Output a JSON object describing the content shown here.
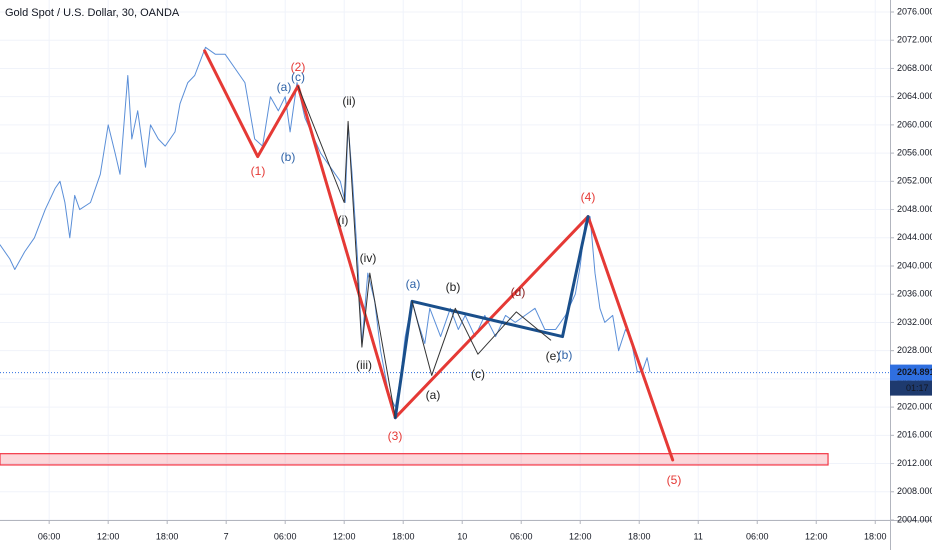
{
  "chart_data": {
    "type": "line",
    "title": "Gold Spot / U.S. Dollar, 30, OANDA",
    "xlim": [
      1,
      91.5
    ],
    "ylim": [
      2004,
      2077.7
    ],
    "grid": true,
    "xticks": [
      {
        "value": 6,
        "label": "06:00"
      },
      {
        "value": 12,
        "label": "12:00"
      },
      {
        "value": 18,
        "label": "18:00"
      },
      {
        "value": 24,
        "label": "7"
      },
      {
        "value": 30,
        "label": "06:00"
      },
      {
        "value": 36,
        "label": "12:00"
      },
      {
        "value": 42,
        "label": "18:00"
      },
      {
        "value": 48,
        "label": "10"
      },
      {
        "value": 54,
        "label": "06:00"
      },
      {
        "value": 60,
        "label": "12:00"
      },
      {
        "value": 66,
        "label": "18:00"
      },
      {
        "value": 72,
        "label": "11"
      },
      {
        "value": 78,
        "label": "06:00"
      },
      {
        "value": 84,
        "label": "12:00"
      },
      {
        "value": 90,
        "label": "18:00"
      }
    ],
    "yticks": [
      {
        "value": 2004,
        "label": "2004.000"
      },
      {
        "value": 2008,
        "label": "2008.000"
      },
      {
        "value": 2012,
        "label": "2012.000"
      },
      {
        "value": 2016,
        "label": "2016.000"
      },
      {
        "value": 2020,
        "label": "2020.000"
      },
      {
        "value": 2024,
        "label": "2024.000"
      },
      {
        "value": 2028,
        "label": "2028.000"
      },
      {
        "value": 2032,
        "label": "2032.000"
      },
      {
        "value": 2036,
        "label": "2036.000"
      },
      {
        "value": 2040,
        "label": "2040.000"
      },
      {
        "value": 2044,
        "label": "2044.000"
      },
      {
        "value": 2048,
        "label": "2048.000"
      },
      {
        "value": 2052,
        "label": "2052.000"
      },
      {
        "value": 2056,
        "label": "2056.000"
      },
      {
        "value": 2060,
        "label": "2060.000"
      },
      {
        "value": 2064,
        "label": "2064.000"
      },
      {
        "value": 2068,
        "label": "2068.000"
      },
      {
        "value": 2072,
        "label": "2072.000"
      },
      {
        "value": 2076,
        "label": "2076.000"
      }
    ],
    "series": [
      {
        "color": "#5b8fd8",
        "width": 1,
        "x": [
          1,
          2,
          2.5,
          3.5,
          4.5,
          5.6,
          6.6,
          7.1,
          7.6,
          8.1,
          8.6,
          9.1,
          10.2,
          11.2,
          12,
          12.7,
          13.2,
          14,
          14.4,
          15,
          15.8,
          16.3,
          17.1,
          17.8,
          18.8,
          19.3,
          20.1,
          20.8,
          21.9,
          22.9,
          23.9,
          24.9,
          25.9,
          26.9,
          27.7,
          28.5,
          29.3,
          30,
          30.5,
          31.2,
          32,
          33.6,
          34.6,
          35.6,
          36.1,
          36.4,
          36.8,
          37.4,
          37.8,
          38.4,
          39.1,
          39.7,
          40.5,
          41.2,
          41.7,
          42.2,
          42.9,
          43.5,
          44.2,
          44.7,
          45.8,
          46.8,
          47.6,
          48.3,
          49.3,
          50.3,
          51.4,
          52.4,
          53.4,
          54.4,
          55.4,
          56.4,
          57.5,
          58.5,
          59.5,
          60,
          60.5,
          61,
          61.5,
          62,
          62.5,
          63.3,
          63.9,
          64.6,
          65.1,
          65.8,
          66.3,
          66.8,
          67.1
        ],
        "values": [
          2043,
          2041,
          2039.5,
          2042,
          2044,
          2048,
          2051,
          2052,
          2049,
          2044,
          2050,
          2048,
          2049,
          2053,
          2060,
          2056,
          2053,
          2067,
          2058,
          2062,
          2054,
          2060,
          2058,
          2057,
          2059,
          2063,
          2066,
          2067,
          2071,
          2070,
          2070,
          2068,
          2066,
          2058,
          2057,
          2064,
          2062,
          2064,
          2059,
          2066,
          2061,
          2056,
          2054,
          2052,
          2049,
          2060,
          2053,
          2040,
          2029,
          2039,
          2035,
          2028,
          2022,
          2020,
          2024,
          2030,
          2035,
          2032,
          2029,
          2034,
          2030,
          2034,
          2031,
          2033,
          2030,
          2033,
          2030,
          2033,
          2032,
          2033,
          2034,
          2031,
          2031,
          2033,
          2036,
          2040,
          2046,
          2047,
          2039,
          2034,
          2032,
          2033,
          2028,
          2031,
          2030,
          2025,
          2025,
          2027,
          2025
        ]
      },
      {
        "color": "#e53935",
        "width": 3,
        "x": [
          21.8,
          27.2,
          31.3,
          41.2,
          60.8,
          69.4
        ],
        "values": [
          2070.5,
          2055.5,
          2065.5,
          2018.5,
          2047,
          2012.5
        ]
      },
      {
        "color": "#1a4f8b",
        "width": 3,
        "x": [
          41.2,
          42.9,
          58.2,
          60.8
        ],
        "values": [
          2018.5,
          2035,
          2030,
          2047
        ]
      },
      {
        "color": "#333333",
        "width": 1,
        "x": [
          31.3,
          36,
          36.4,
          37.8,
          38.6,
          41.2
        ],
        "values": [
          2065.5,
          2049,
          2060.5,
          2028.5,
          2039,
          2018.5
        ]
      },
      {
        "color": "#333333",
        "width": 1,
        "x": [
          42.9,
          44.9,
          47.3,
          49.6,
          53.5,
          57
        ],
        "values": [
          2035,
          2024.5,
          2034,
          2027.5,
          2033.5,
          2029.5
        ]
      }
    ],
    "zone": {
      "from": 2011.8,
      "to": 2013.4,
      "x": [
        1,
        85.2
      ],
      "color": "#f23645"
    },
    "last_price": 2024.891,
    "last_price_color": "#2f6fe0",
    "countdown": "01:17",
    "annotations": [
      {
        "text": "(1)",
        "color": "#e53935"
      },
      {
        "text": "(2)",
        "color": "#e53935"
      },
      {
        "text": "(3)",
        "color": "#e53935"
      },
      {
        "text": "(4)",
        "color": "#e53935"
      },
      {
        "text": "(5)",
        "color": "#e53935"
      },
      {
        "text": "(a)",
        "color": "#2f63a8"
      },
      {
        "text": "(b)",
        "color": "#2f63a8"
      },
      {
        "text": "(c)",
        "color": "#2f63a8"
      },
      {
        "text": "(ii)",
        "color": "#222222"
      },
      {
        "text": "(i)",
        "color": "#222222"
      },
      {
        "text": "(iv)",
        "color": "#222222"
      },
      {
        "text": "(iii)",
        "color": "#222222"
      },
      {
        "text": "(a)",
        "color": "#2f63a8"
      },
      {
        "text": "(b)",
        "color": "#222222"
      },
      {
        "text": "(a)",
        "color": "#222222"
      },
      {
        "text": "(c)",
        "color": "#222222"
      },
      {
        "text": "(d)",
        "color": "#8a2020"
      },
      {
        "text": "(e)",
        "color": "#222222"
      },
      {
        "text": "(b)",
        "color": "#2f63a8"
      }
    ]
  }
}
